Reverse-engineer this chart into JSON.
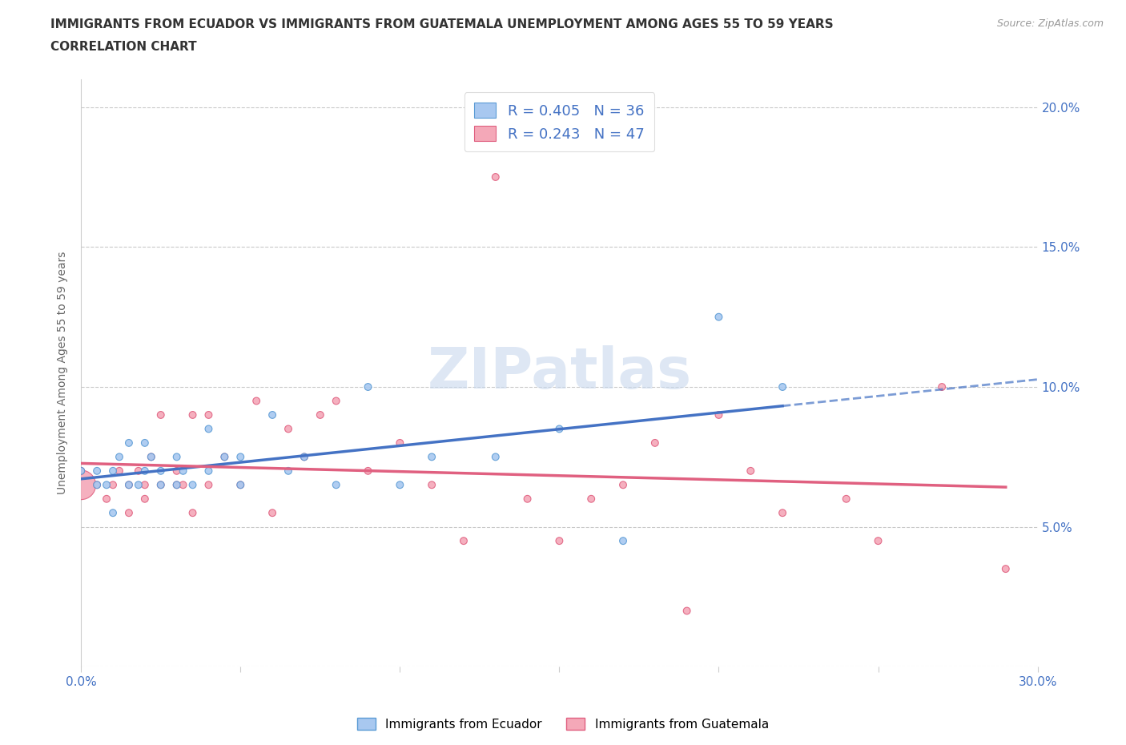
{
  "title_line1": "IMMIGRANTS FROM ECUADOR VS IMMIGRANTS FROM GUATEMALA UNEMPLOYMENT AMONG AGES 55 TO 59 YEARS",
  "title_line2": "CORRELATION CHART",
  "source_text": "Source: ZipAtlas.com",
  "ylabel": "Unemployment Among Ages 55 to 59 years",
  "xlim": [
    0.0,
    0.3
  ],
  "ylim": [
    0.0,
    0.21
  ],
  "ecuador_color": "#a8c8f0",
  "ecuador_edge": "#5b9bd5",
  "guatemala_color": "#f4a8b8",
  "guatemala_edge": "#e06080",
  "ecuador_line_color": "#4472c4",
  "guatemala_line_color": "#e06080",
  "R_ecuador": 0.405,
  "N_ecuador": 36,
  "R_guatemala": 0.243,
  "N_guatemala": 47,
  "legend_R_color": "#4472c4",
  "watermark": "ZIPatlas",
  "ecuador_x": [
    0.0,
    0.005,
    0.005,
    0.008,
    0.01,
    0.01,
    0.012,
    0.015,
    0.015,
    0.018,
    0.02,
    0.02,
    0.022,
    0.025,
    0.025,
    0.03,
    0.03,
    0.032,
    0.035,
    0.04,
    0.04,
    0.045,
    0.05,
    0.05,
    0.06,
    0.065,
    0.07,
    0.08,
    0.09,
    0.1,
    0.11,
    0.13,
    0.15,
    0.17,
    0.2,
    0.22
  ],
  "ecuador_y": [
    0.07,
    0.065,
    0.07,
    0.065,
    0.055,
    0.07,
    0.075,
    0.065,
    0.08,
    0.065,
    0.07,
    0.08,
    0.075,
    0.065,
    0.07,
    0.065,
    0.075,
    0.07,
    0.065,
    0.07,
    0.085,
    0.075,
    0.065,
    0.075,
    0.09,
    0.07,
    0.075,
    0.065,
    0.1,
    0.065,
    0.075,
    0.075,
    0.085,
    0.045,
    0.125,
    0.1
  ],
  "ecuador_sizes": [
    40,
    40,
    40,
    40,
    40,
    40,
    40,
    40,
    40,
    40,
    40,
    40,
    40,
    40,
    40,
    40,
    40,
    40,
    40,
    40,
    40,
    40,
    40,
    40,
    40,
    40,
    40,
    40,
    40,
    40,
    40,
    40,
    40,
    40,
    40,
    40
  ],
  "guatemala_x": [
    0.0,
    0.0,
    0.005,
    0.008,
    0.01,
    0.012,
    0.015,
    0.015,
    0.018,
    0.02,
    0.02,
    0.022,
    0.025,
    0.025,
    0.03,
    0.03,
    0.032,
    0.035,
    0.035,
    0.04,
    0.04,
    0.045,
    0.05,
    0.055,
    0.06,
    0.065,
    0.07,
    0.075,
    0.08,
    0.09,
    0.1,
    0.11,
    0.12,
    0.13,
    0.14,
    0.15,
    0.16,
    0.17,
    0.18,
    0.19,
    0.2,
    0.21,
    0.22,
    0.24,
    0.25,
    0.27,
    0.29
  ],
  "guatemala_y": [
    0.065,
    0.07,
    0.065,
    0.06,
    0.065,
    0.07,
    0.055,
    0.065,
    0.07,
    0.06,
    0.065,
    0.075,
    0.065,
    0.09,
    0.065,
    0.07,
    0.065,
    0.055,
    0.09,
    0.065,
    0.09,
    0.075,
    0.065,
    0.095,
    0.055,
    0.085,
    0.075,
    0.09,
    0.095,
    0.07,
    0.08,
    0.065,
    0.045,
    0.175,
    0.06,
    0.045,
    0.06,
    0.065,
    0.08,
    0.02,
    0.09,
    0.07,
    0.055,
    0.06,
    0.045,
    0.1,
    0.035
  ],
  "guatemala_sizes": [
    700,
    40,
    40,
    40,
    40,
    40,
    40,
    40,
    40,
    40,
    40,
    40,
    40,
    40,
    40,
    40,
    40,
    40,
    40,
    40,
    40,
    40,
    40,
    40,
    40,
    40,
    40,
    40,
    40,
    40,
    40,
    40,
    40,
    40,
    40,
    40,
    40,
    40,
    40,
    40,
    40,
    40,
    40,
    40,
    40,
    40,
    40
  ]
}
